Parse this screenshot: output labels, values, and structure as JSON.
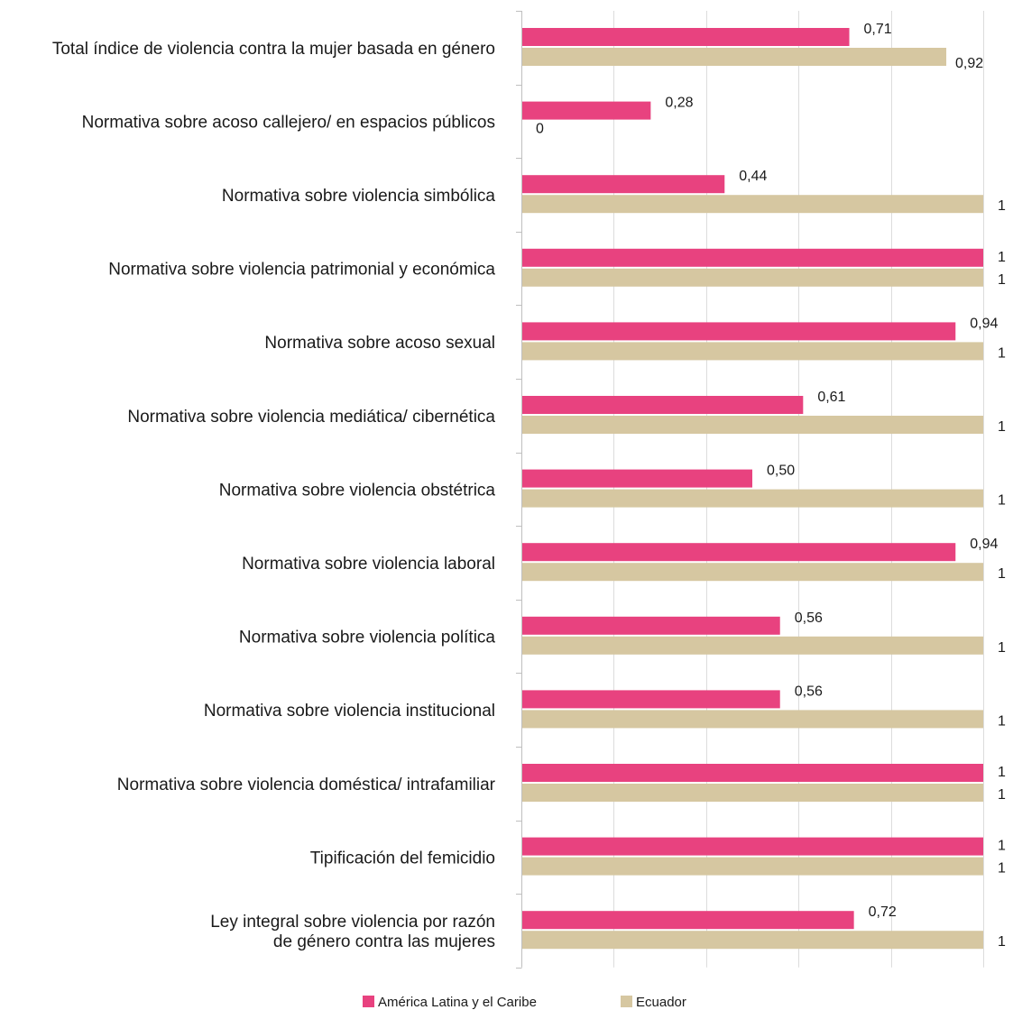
{
  "chart_data": {
    "type": "bar",
    "orientation": "horizontal",
    "categories": [
      [
        "Total índice de violencia contra la mujer basada en género"
      ],
      [
        "Normativa sobre acoso callejero/ en espacios públicos"
      ],
      [
        "Normativa sobre violencia simbólica"
      ],
      [
        "Normativa sobre violencia patrimonial y económica"
      ],
      [
        "Normativa sobre acoso sexual"
      ],
      [
        "Normativa sobre violencia mediática/ cibernética"
      ],
      [
        "Normativa sobre violencia obstétrica"
      ],
      [
        "Normativa sobre violencia laboral"
      ],
      [
        "Normativa sobre violencia política"
      ],
      [
        "Normativa sobre violencia institucional"
      ],
      [
        "Normativa sobre violencia doméstica/ intrafamiliar"
      ],
      [
        "Tipificación del femicidio"
      ],
      [
        "Ley integral sobre violencia por razón",
        "de género contra las mujeres"
      ]
    ],
    "series": [
      {
        "name": "América Latina y el Caribe",
        "color": "#e8427f",
        "values": [
          0.71,
          0.28,
          0.44,
          1,
          0.94,
          0.61,
          0.5,
          0.94,
          0.56,
          0.56,
          1,
          1,
          0.72
        ],
        "labels": [
          "0,71",
          "0,28",
          "0,44",
          "1",
          "0,94",
          "0,61",
          "0,50",
          "0,94",
          "0,56",
          "0,56",
          "1",
          "1",
          "0,72"
        ]
      },
      {
        "name": "Ecuador",
        "color": "#d6c7a1",
        "values": [
          0.92,
          0,
          1,
          1,
          1,
          1,
          1,
          1,
          1,
          1,
          1,
          1,
          1
        ],
        "labels": [
          "0,92",
          "0",
          "1",
          "1",
          "1",
          "1",
          "1",
          "1",
          "1",
          "1",
          "1",
          "1",
          "1"
        ]
      }
    ],
    "xlim": [
      0,
      1
    ],
    "grid": true,
    "legend_position": "bottom"
  }
}
